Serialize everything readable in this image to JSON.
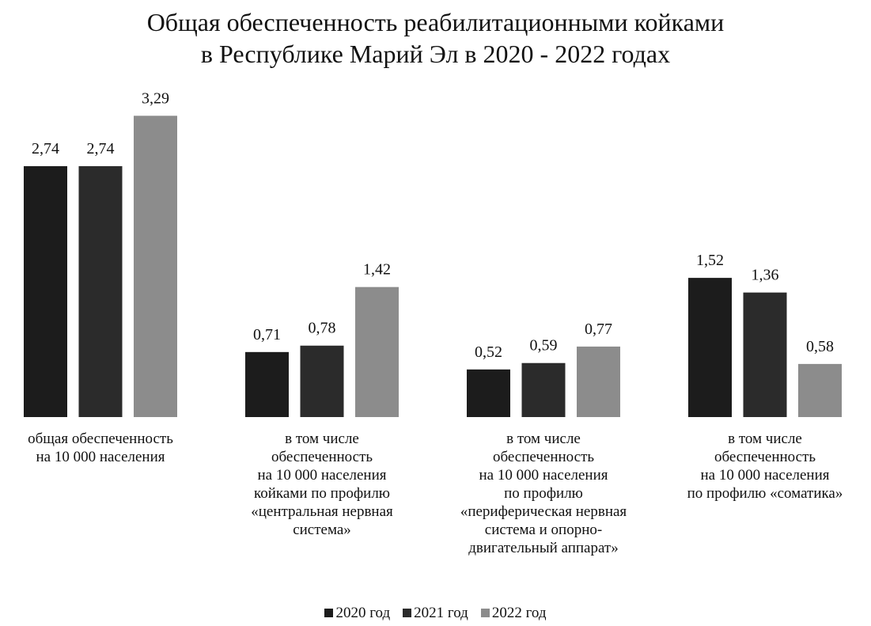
{
  "chart_data": {
    "type": "bar",
    "title": "Общая обеспеченность реабилитационными койками\nв Республике Марий Эл в 2020 - 2022 годах",
    "categories": [
      "общая обеспеченность\nна 10 000 населения",
      "в том числе\nобеспеченность\nна 10 000 населения\nкойками по профилю\n«центральная нервная\nсистема»",
      "в том числе\nобеспеченность\nна 10 000 населения\nпо профилю\n«периферическая нервная\nсистема и опорно-\nдвигательный аппарат»",
      "в том числе\nобеспеченность\nна 10 000 населения\nпо профилю «соматика»"
    ],
    "series": [
      {
        "name": "2020 год",
        "color": "#1c1c1c",
        "values": [
          2.74,
          0.71,
          0.52,
          1.52
        ],
        "value_labels": [
          "2,74",
          "0,71",
          "0,52",
          "1,52"
        ]
      },
      {
        "name": "2021 год",
        "color": "#2b2b2b",
        "values": [
          2.74,
          0.78,
          0.59,
          1.36
        ],
        "value_labels": [
          "2,74",
          "0,78",
          "0,59",
          "1,36"
        ]
      },
      {
        "name": "2022 год",
        "color": "#8c8c8c",
        "values": [
          3.29,
          1.42,
          0.77,
          0.58
        ],
        "value_labels": [
          "3,29",
          "1,42",
          "0,77",
          "0,58"
        ]
      }
    ],
    "ylim": [
      0,
      3.5
    ]
  }
}
